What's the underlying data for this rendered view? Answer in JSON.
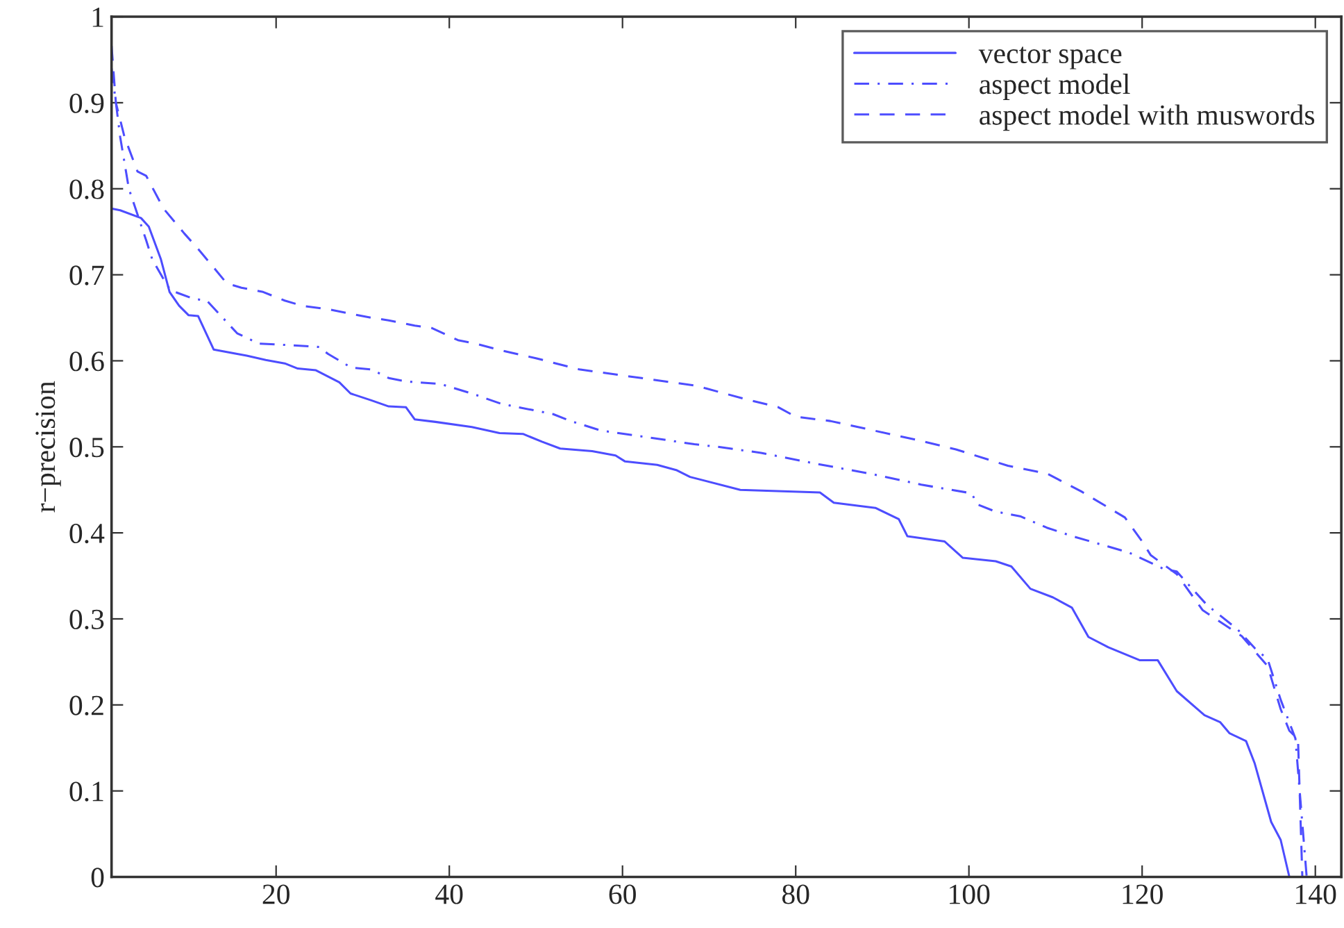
{
  "chart_data": {
    "type": "line",
    "ylabel": "r−precision",
    "xlim": [
      1,
      143
    ],
    "ylim": [
      0,
      1
    ],
    "xticks": [
      20,
      40,
      60,
      80,
      100,
      120,
      140
    ],
    "yticks": [
      0,
      0.1,
      0.2,
      0.3,
      0.4,
      0.5,
      0.6,
      0.7,
      0.8,
      0.9,
      1
    ],
    "grid": false,
    "legend": "top right",
    "marker": "none",
    "series": [
      {
        "name": "vector space",
        "color": "#4d4dff",
        "line_style": "solid",
        "x": [
          1,
          2,
          4.4,
          5.3,
          6.7,
          7.7,
          8.8,
          9.9,
          11,
          12.8,
          16.6,
          18.8,
          21,
          22.5,
          24.6,
          27.3,
          28.6,
          31,
          33,
          35,
          36,
          38.4,
          42.6,
          45.8,
          48.5,
          50.7,
          52.8,
          56.5,
          59.2,
          60.3,
          64,
          66.2,
          67.8,
          73.6,
          82.8,
          84.4,
          89.2,
          91.9,
          92.9,
          97.2,
          99.3,
          103.1,
          104.9,
          107.1,
          109.7,
          111.9,
          113.8,
          116.1,
          119.7,
          121.8,
          124,
          127.2,
          129,
          130.1,
          132,
          133,
          134.9,
          136,
          137,
          143
        ],
        "values": [
          0.777,
          0.775,
          0.766,
          0.756,
          0.718,
          0.68,
          0.664,
          0.653,
          0.652,
          0.613,
          0.606,
          0.601,
          0.597,
          0.591,
          0.589,
          0.575,
          0.562,
          0.554,
          0.547,
          0.546,
          0.532,
          0.529,
          0.523,
          0.516,
          0.515,
          0.506,
          0.498,
          0.495,
          0.49,
          0.483,
          0.479,
          0.473,
          0.465,
          0.45,
          0.447,
          0.435,
          0.429,
          0.416,
          0.396,
          0.39,
          0.371,
          0.367,
          0.361,
          0.335,
          0.325,
          0.313,
          0.279,
          0.267,
          0.252,
          0.252,
          0.216,
          0.188,
          0.18,
          0.167,
          0.158,
          0.132,
          0.064,
          0.043,
          0,
          0
        ]
      },
      {
        "name": "aspect model",
        "color": "#4d4dff",
        "line_style": "dashdot",
        "x": [
          1,
          2,
          3,
          5,
          5.7,
          7,
          7.8,
          10.5,
          12,
          15.5,
          18,
          22,
          25,
          26,
          28.7,
          31,
          33,
          35,
          39,
          42.6,
          46,
          48,
          52,
          54,
          57.5,
          63,
          68.3,
          71,
          76,
          82,
          89,
          94.5,
          100.3,
          101,
          103,
          106,
          109,
          112,
          118.5,
          122.5,
          124,
          127.5,
          131,
          133,
          134.5,
          136,
          137.7,
          139
        ],
        "values": [
          0.94,
          0.86,
          0.8,
          0.74,
          0.718,
          0.695,
          0.682,
          0.672,
          0.67,
          0.632,
          0.62,
          0.618,
          0.616,
          0.608,
          0.592,
          0.59,
          0.58,
          0.576,
          0.573,
          0.562,
          0.55,
          0.546,
          0.538,
          0.53,
          0.519,
          0.511,
          0.503,
          0.5,
          0.493,
          0.481,
          0.468,
          0.456,
          0.446,
          0.433,
          0.425,
          0.419,
          0.406,
          0.396,
          0.377,
          0.358,
          0.355,
          0.316,
          0.288,
          0.266,
          0.253,
          0.206,
          0.161,
          0
        ]
      },
      {
        "name": "aspect model with muswords",
        "color": "#4d4dff",
        "line_style": "dashed",
        "x": [
          1,
          1.5,
          2.5,
          4,
          5,
          7,
          9.4,
          11,
          13,
          14.3,
          16,
          18.5,
          21,
          23,
          26,
          28.5,
          31,
          33,
          36,
          38,
          41,
          43,
          46,
          50,
          55,
          60,
          65,
          68.5,
          74,
          78,
          80,
          84,
          89,
          94,
          98.5,
          104.5,
          109,
          113,
          118,
          120,
          121,
          124,
          127,
          131.5,
          134.5,
          136,
          137,
          138,
          138.5
        ],
        "values": [
          0.966,
          0.9,
          0.86,
          0.82,
          0.815,
          0.777,
          0.748,
          0.73,
          0.706,
          0.69,
          0.685,
          0.68,
          0.67,
          0.664,
          0.66,
          0.655,
          0.65,
          0.647,
          0.641,
          0.638,
          0.624,
          0.62,
          0.612,
          0.603,
          0.59,
          0.583,
          0.576,
          0.571,
          0.556,
          0.546,
          0.535,
          0.53,
          0.519,
          0.508,
          0.497,
          0.478,
          0.469,
          0.448,
          0.418,
          0.39,
          0.374,
          0.352,
          0.31,
          0.28,
          0.245,
          0.195,
          0.17,
          0.16,
          0
        ]
      }
    ]
  }
}
